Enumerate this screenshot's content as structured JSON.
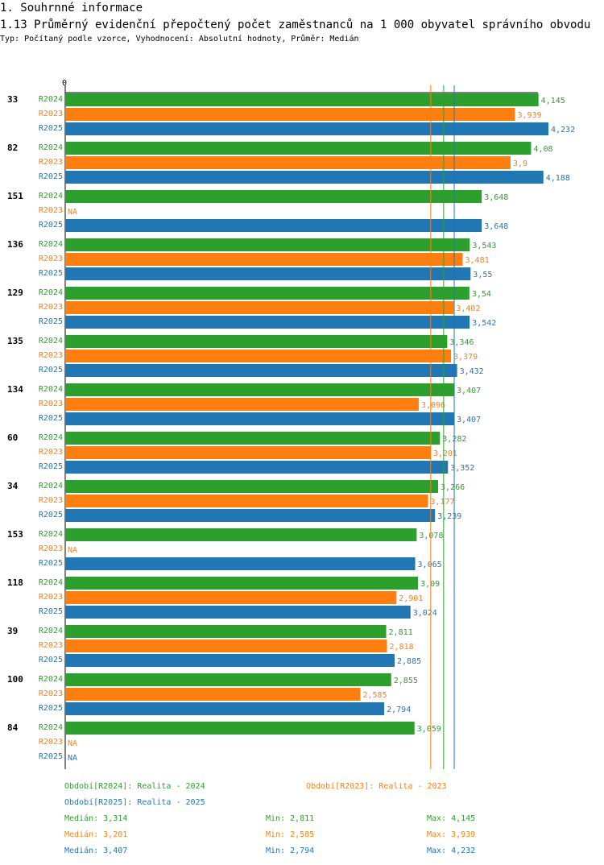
{
  "header": {
    "section": "1. Souhrnné informace",
    "title": "1.13 Průměrný evidenční přepočtený počet zaměstnanců na 1 000 obyvatel správního obvodu",
    "subtitle": "Typ: Počítaný podle vzorce, Vyhodnocení: Absolutní hodnoty, Průměr: Medián"
  },
  "colors": {
    "R2024": "#2ca02c",
    "R2023": "#ff7f0e",
    "R2025": "#1f77b4"
  },
  "chart_data": {
    "type": "bar",
    "orientation": "horizontal",
    "axis_zero_label": "0",
    "xlim": [
      0,
      4.232
    ],
    "categories": [
      "33",
      "82",
      "151",
      "136",
      "129",
      "135",
      "134",
      "60",
      "34",
      "153",
      "118",
      "39",
      "100",
      "84"
    ],
    "series": [
      {
        "name": "R2024",
        "values": [
          4.145,
          4.08,
          3.648,
          3.543,
          3.54,
          3.346,
          3.407,
          3.282,
          3.266,
          3.078,
          3.09,
          2.811,
          2.855,
          3.059
        ],
        "labels": [
          "4,145",
          "4,08",
          "3,648",
          "3,543",
          "3,54",
          "3,346",
          "3,407",
          "3,282",
          "3,266",
          "3,078",
          "3,09",
          "2,811",
          "2,855",
          "3,059"
        ]
      },
      {
        "name": "R2023",
        "values": [
          3.939,
          3.9,
          null,
          3.481,
          3.402,
          3.379,
          3.096,
          3.201,
          3.177,
          null,
          2.901,
          2.818,
          2.585,
          null
        ],
        "labels": [
          "3,939",
          "3,9",
          "NA",
          "3,481",
          "3,402",
          "3,379",
          "3,096",
          "3,201",
          "3,177",
          "NA",
          "2,901",
          "2,818",
          "2,585",
          "NA"
        ]
      },
      {
        "name": "R2025",
        "values": [
          4.232,
          4.188,
          3.648,
          3.55,
          3.542,
          3.432,
          3.407,
          3.352,
          3.239,
          3.065,
          3.024,
          2.885,
          2.794,
          null
        ],
        "labels": [
          "4,232",
          "4,188",
          "3,648",
          "3,55",
          "3,542",
          "3,432",
          "3,407",
          "3,352",
          "3,239",
          "3,065",
          "3,024",
          "2,885",
          "2,794",
          "NA"
        ]
      }
    ],
    "median_lines": [
      {
        "series": "R2024",
        "value": 3.314
      },
      {
        "series": "R2023",
        "value": 3.201
      },
      {
        "series": "R2025",
        "value": 3.407
      }
    ],
    "legend": [
      {
        "series": "R2024",
        "text": "Období[R2024]: Realita - 2024"
      },
      {
        "series": "R2023",
        "text": "Období[R2023]: Realita - 2023"
      },
      {
        "series": "R2025",
        "text": "Období[R2025]: Realita - 2025"
      }
    ],
    "stats": [
      {
        "series": "R2024",
        "median": "Medián: 3,314",
        "min": "Min: 2,811",
        "max": "Max: 4,145"
      },
      {
        "series": "R2023",
        "median": "Medián: 3,201",
        "min": "Min: 2,585",
        "max": "Max: 3,939"
      },
      {
        "series": "R2025",
        "median": "Medián: 3,407",
        "min": "Min: 2,794",
        "max": "Max: 4,232"
      }
    ]
  }
}
